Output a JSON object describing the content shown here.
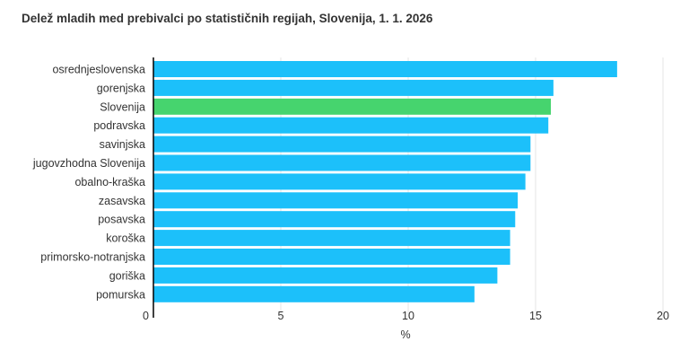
{
  "chart_data": {
    "type": "bar",
    "orientation": "horizontal",
    "title": "Delež mladih med prebivalci po statističnih regijah, Slovenija, 1. 1. 2026",
    "xlabel": "%",
    "ylabel": "",
    "xlim": [
      0,
      20
    ],
    "xticks": [
      "0",
      "5",
      "10",
      "15",
      "20"
    ],
    "grid": true,
    "categories": [
      "osrednjeslovenska",
      "gorenjska",
      "Slovenija",
      "podravska",
      "savinjska",
      "jugovzhodna Slovenija",
      "obalno-kraška",
      "zasavska",
      "posavska",
      "koroška",
      "primorsko-notranjska",
      "goriška",
      "pomurska"
    ],
    "values": [
      18.2,
      15.7,
      15.6,
      15.5,
      14.8,
      14.8,
      14.6,
      14.3,
      14.2,
      14.0,
      14.0,
      13.5,
      12.6
    ],
    "colors": {
      "default": "#1cc0fa",
      "highlight": "#46d46e",
      "axis": "#000000",
      "grid": "#e6e6e6"
    },
    "highlight_category": "Slovenija"
  }
}
